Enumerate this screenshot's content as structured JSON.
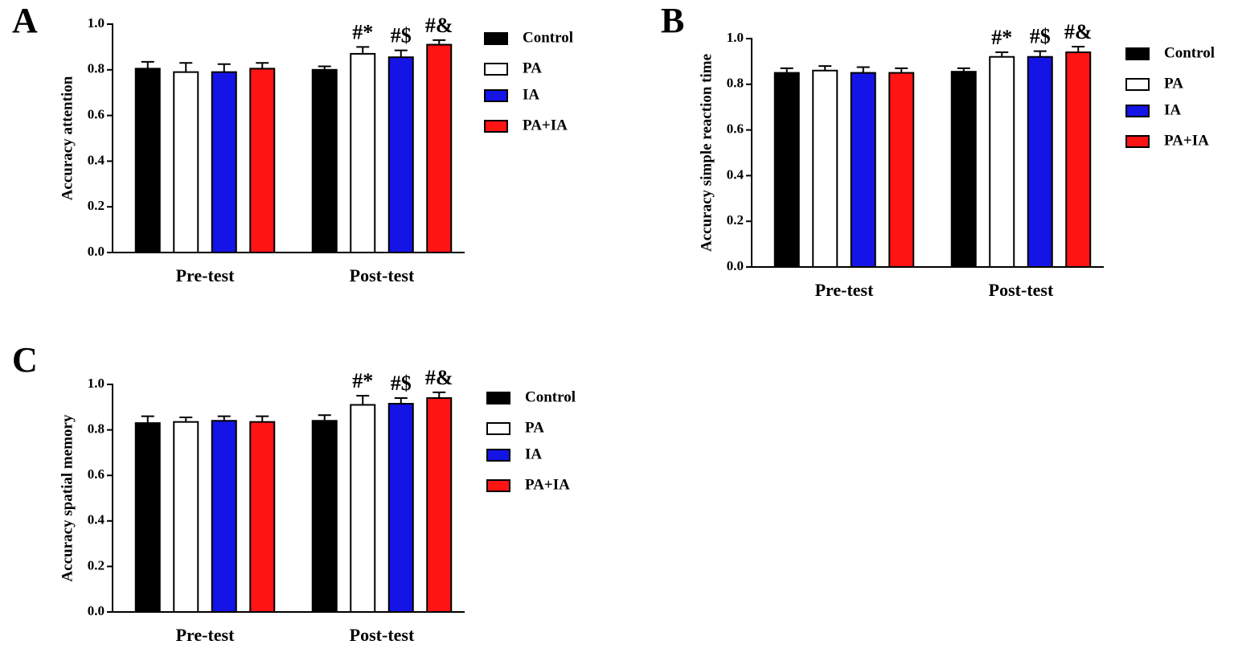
{
  "chart_data": [
    {
      "type": "bar",
      "panel": "A",
      "ylabel": "Accuracy attention",
      "categories": [
        "Pre-test",
        "Post-test"
      ],
      "series": [
        {
          "name": "Control",
          "color": "#000000",
          "values": [
            0.805,
            0.8
          ],
          "errors": [
            0.03,
            0.015
          ],
          "annotations": [
            null,
            null
          ]
        },
        {
          "name": "PA",
          "color": "#ffffff",
          "values": [
            0.79,
            0.87
          ],
          "errors": [
            0.04,
            0.03
          ],
          "annotations": [
            null,
            "#*"
          ]
        },
        {
          "name": "IA",
          "color": "#1414e6",
          "values": [
            0.79,
            0.855
          ],
          "errors": [
            0.035,
            0.03
          ],
          "annotations": [
            null,
            "#$"
          ]
        },
        {
          "name": "PA+IA",
          "color": "#ff1414",
          "values": [
            0.805,
            0.91
          ],
          "errors": [
            0.025,
            0.02
          ],
          "annotations": [
            null,
            "#&"
          ]
        }
      ],
      "ylim": [
        0,
        1
      ],
      "yticks": [
        {
          "value": 0,
          "label": "0.0"
        },
        0.2,
        0.4,
        0.6,
        0.8,
        {
          "value": 1,
          "label": "1.0"
        }
      ]
    },
    {
      "type": "bar",
      "panel": "B",
      "ylabel": "Accuracy simple reaction time",
      "categories": [
        "Pre-test",
        "Post-test"
      ],
      "series": [
        {
          "name": "Control",
          "color": "#000000",
          "values": [
            0.85,
            0.855
          ],
          "errors": [
            0.02,
            0.015
          ],
          "annotations": [
            null,
            null
          ]
        },
        {
          "name": "PA",
          "color": "#ffffff",
          "values": [
            0.86,
            0.92
          ],
          "errors": [
            0.02,
            0.02
          ],
          "annotations": [
            null,
            "#*"
          ]
        },
        {
          "name": "IA",
          "color": "#1414e6",
          "values": [
            0.85,
            0.92
          ],
          "errors": [
            0.025,
            0.025
          ],
          "annotations": [
            null,
            "#$"
          ]
        },
        {
          "name": "PA+IA",
          "color": "#ff1414",
          "values": [
            0.85,
            0.94
          ],
          "errors": [
            0.02,
            0.025
          ],
          "annotations": [
            null,
            "#&"
          ]
        }
      ],
      "ylim": [
        0,
        1
      ],
      "yticks": [
        {
          "value": 0,
          "label": "0.0"
        },
        0.2,
        0.4,
        0.6,
        0.8,
        {
          "value": 1,
          "label": "1.0"
        }
      ]
    },
    {
      "type": "bar",
      "panel": "C",
      "ylabel": "Accuracy spatial memory",
      "categories": [
        "Pre-test",
        "Post-test"
      ],
      "series": [
        {
          "name": "Control",
          "color": "#000000",
          "values": [
            0.83,
            0.84
          ],
          "errors": [
            0.03,
            0.025
          ],
          "annotations": [
            null,
            null
          ]
        },
        {
          "name": "PA",
          "color": "#ffffff",
          "values": [
            0.835,
            0.91
          ],
          "errors": [
            0.02,
            0.04
          ],
          "annotations": [
            null,
            "#*"
          ]
        },
        {
          "name": "IA",
          "color": "#1414e6",
          "values": [
            0.84,
            0.915
          ],
          "errors": [
            0.02,
            0.025
          ],
          "annotations": [
            null,
            "#$"
          ]
        },
        {
          "name": "PA+IA",
          "color": "#ff1414",
          "values": [
            0.835,
            0.94
          ],
          "errors": [
            0.025,
            0.025
          ],
          "annotations": [
            null,
            "#&"
          ]
        }
      ],
      "ylim": [
        0,
        1
      ],
      "yticks": [
        {
          "value": 0,
          "label": "0.0"
        },
        0.2,
        0.4,
        0.6,
        0.8,
        {
          "value": 1,
          "label": "1.0"
        }
      ]
    }
  ]
}
